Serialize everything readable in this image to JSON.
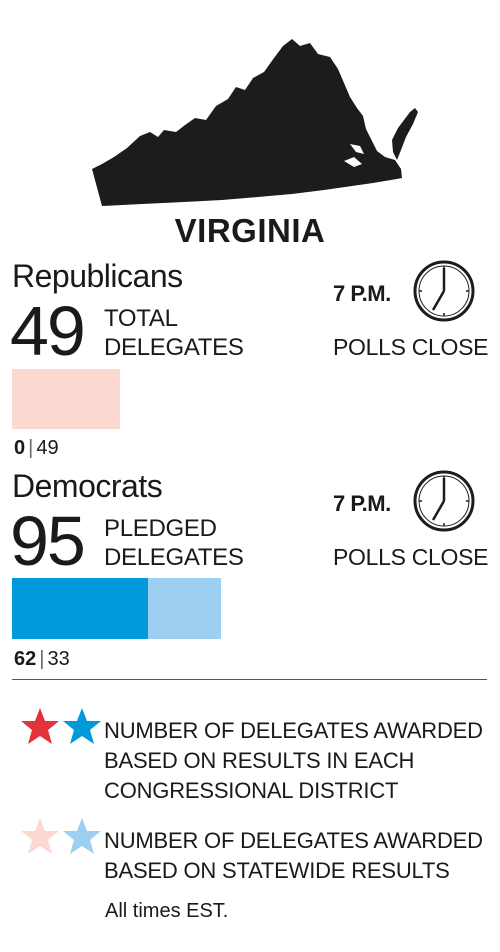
{
  "state": {
    "name": "VIRGINIA",
    "map_icon": "virginia-state-silhouette",
    "map_color": "#1c1c1c"
  },
  "republicans": {
    "party": "Republicans",
    "total": "49",
    "delegate_line1": "TOTAL",
    "delegate_line2": "DELEGATES",
    "time": "7 P.M.",
    "polls": "POLLS CLOSE",
    "clock_icon": "clock-icon",
    "district_delegates": "0",
    "statewide_delegates": "49",
    "district_color": "#e4323c",
    "statewide_color": "#fcd9d0"
  },
  "democrats": {
    "party": "Democrats",
    "total": "95",
    "delegate_line1": "PLEDGED",
    "delegate_line2": "DELEGATES",
    "time": "7 P.M.",
    "polls": "POLLS CLOSE",
    "clock_icon": "clock-icon",
    "district_delegates": "62",
    "statewide_delegates": "33",
    "district_color": "#0099d9",
    "statewide_color": "#9ccff0"
  },
  "legend": {
    "district": {
      "line1": "NUMBER OF DELEGATES AWARDED",
      "line2": "BASED ON RESULTS IN EACH",
      "line3": "CONGRESSIONAL DISTRICT",
      "icons": [
        "red-star-icon",
        "blue-star-icon"
      ]
    },
    "statewide": {
      "line1": "NUMBER OF DELEGATES AWARDED",
      "line2": "BASED ON STATEWIDE RESULTS",
      "icons": [
        "light-red-star-icon",
        "light-blue-star-icon"
      ]
    },
    "note": "All times EST."
  }
}
